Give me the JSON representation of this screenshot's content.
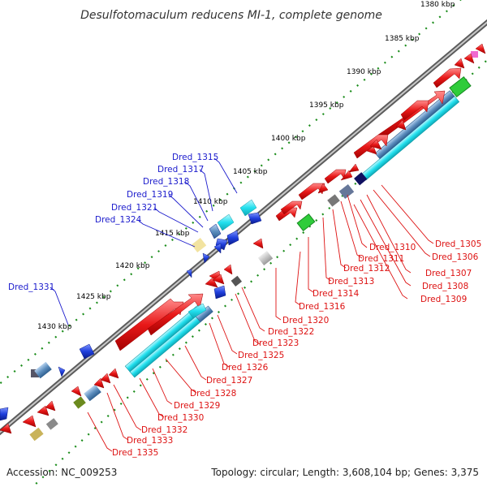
{
  "title": "Desulfotomaculum reducens MI-1, complete genome",
  "footer": {
    "accession": "Accession: NC_009253",
    "stats": "Topology: circular; Length: 3,608,104 bp; Genes: 3,375"
  },
  "ticks": [
    "1380 kbp",
    "1385 kbp",
    "1390 kbp",
    "1395 kbp",
    "1400 kbp",
    "1405 kbp",
    "1410 kbp",
    "1415 kbp",
    "1420 kbp",
    "1425 kbp",
    "1430 kbp"
  ],
  "forward_labels": [
    "Dred_1315",
    "Dred_1317",
    "Dred_1318",
    "Dred_1319",
    "Dred_1321",
    "Dred_1324",
    "Dred_1331"
  ],
  "reverse_labels": [
    "Dred_1305",
    "Dred_1306",
    "Dred_1307",
    "Dred_1308",
    "Dred_1309",
    "Dred_1310",
    "Dred_1311",
    "Dred_1312",
    "Dred_1313",
    "Dred_1314",
    "Dred_1316",
    "Dred_1320",
    "Dred_1322",
    "Dred_1323",
    "Dred_1325",
    "Dred_1326",
    "Dred_1327",
    "Dred_1328",
    "Dred_1329",
    "Dred_1330",
    "Dred_1332",
    "Dred_1333",
    "Dred_1335"
  ],
  "colors": {
    "forward_label": "#1a1acc",
    "reverse_label": "#dd1111",
    "forward_gene": "#1f3fdd",
    "reverse_gene": "#e81818",
    "cyan_feature": "#22e0ee",
    "steel_feature": "#5e8fbf",
    "backbone": "#888888",
    "tick_dot": "#1a8c1a"
  }
}
